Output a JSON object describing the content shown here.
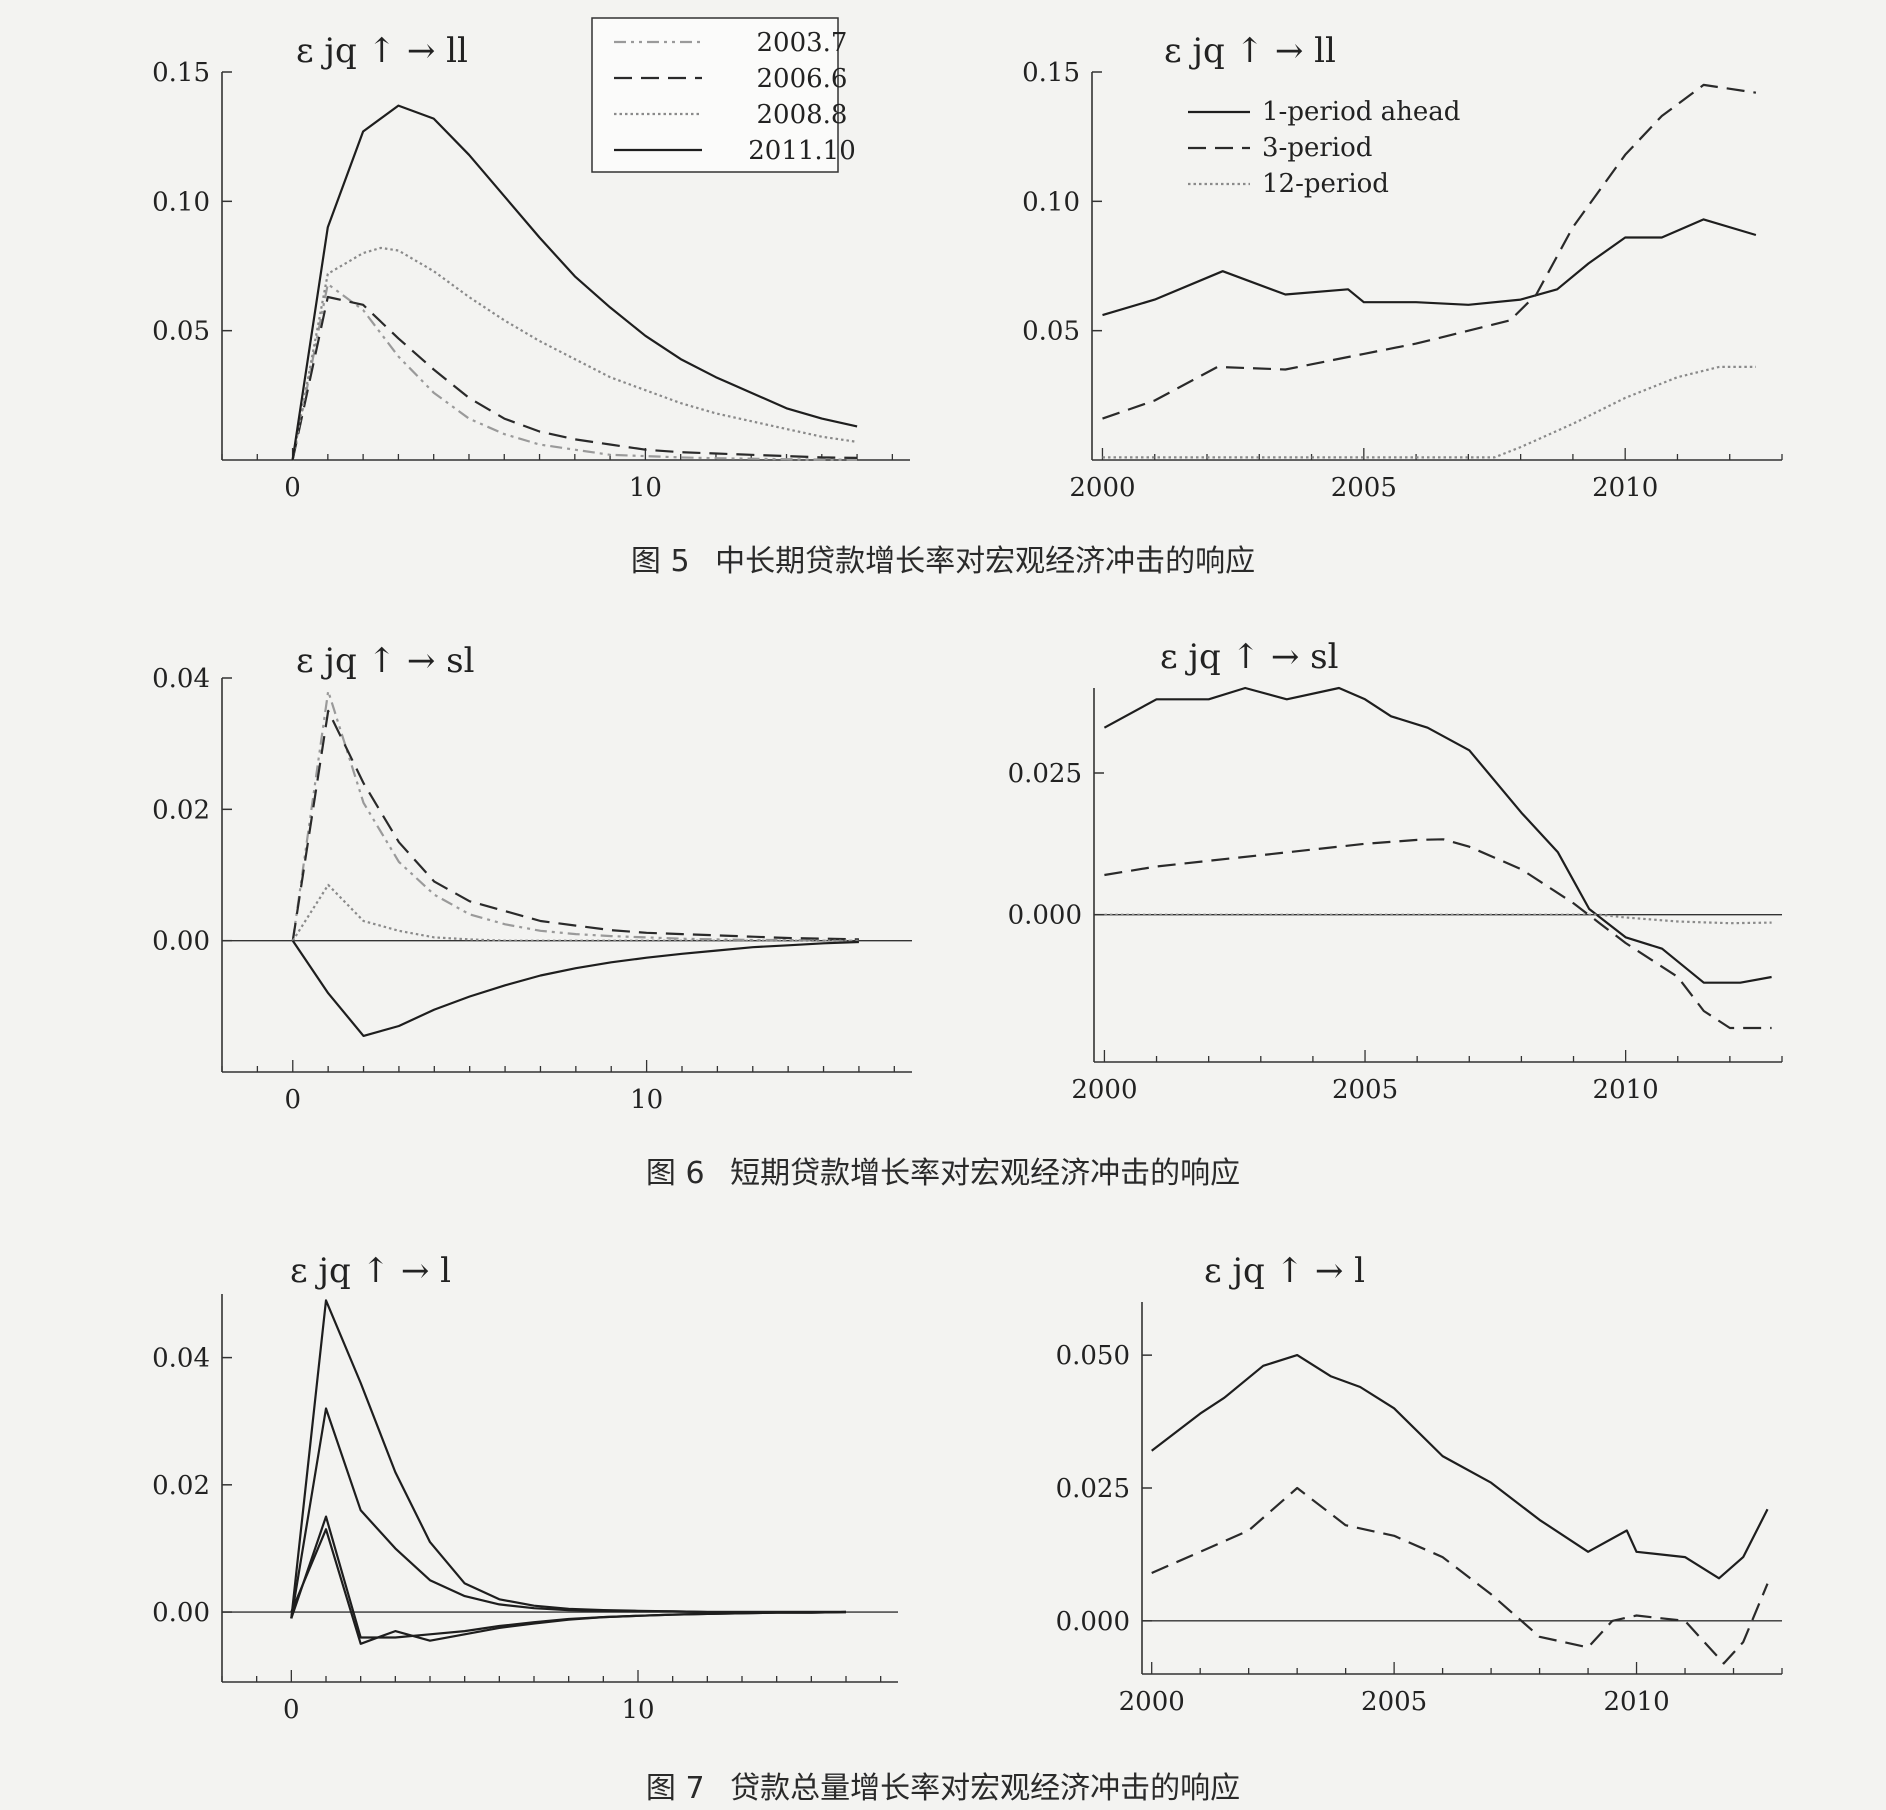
{
  "figures": [
    {
      "num": "图 5",
      "title": "中长期贷款增长率对宏观经济冲击的响应"
    },
    {
      "num": "图 6",
      "title": "短期贷款增长率对宏观经济冲击的响应"
    },
    {
      "num": "图 7",
      "title": "贷款总量增长率对宏观经济冲击的响应"
    }
  ],
  "chart_data": [
    {
      "type": "line",
      "panel": "5a",
      "title": "ε jq ↑ → ll",
      "xlim": [
        -2,
        17.5
      ],
      "ylim": [
        0,
        0.15
      ],
      "xticks": [
        0,
        10
      ],
      "yticks": [
        0.05,
        0.1,
        0.15
      ],
      "ytick_labels": [
        "0.05",
        "0.10",
        "0.15"
      ],
      "legend": "top-center",
      "series": [
        {
          "name": "2003.7",
          "style": "dashdotdot",
          "x": [
            0,
            1,
            2,
            3,
            4,
            5,
            6,
            7,
            8,
            9,
            10,
            11,
            12,
            13,
            14,
            15,
            16
          ],
          "y": [
            0,
            0.068,
            0.058,
            0.04,
            0.026,
            0.016,
            0.01,
            0.006,
            0.004,
            0.002,
            0.0015,
            0.001,
            0.0007,
            0.0005,
            0.0003,
            0.0002,
            0.0001
          ]
        },
        {
          "name": "2006.6",
          "style": "dashed",
          "x": [
            0,
            1,
            2,
            3,
            4,
            5,
            6,
            7,
            8,
            9,
            10,
            11,
            12,
            13,
            14,
            15,
            16
          ],
          "y": [
            0,
            0.063,
            0.06,
            0.047,
            0.035,
            0.024,
            0.016,
            0.011,
            0.008,
            0.006,
            0.004,
            0.003,
            0.0025,
            0.002,
            0.0015,
            0.001,
            0.0008
          ]
        },
        {
          "name": "2008.8",
          "style": "dotted",
          "x": [
            0,
            1,
            2,
            2.5,
            3,
            4,
            5,
            6,
            7,
            8,
            9,
            10,
            11,
            12,
            13,
            14,
            15,
            16
          ],
          "y": [
            0,
            0.072,
            0.08,
            0.082,
            0.081,
            0.073,
            0.063,
            0.054,
            0.046,
            0.039,
            0.032,
            0.027,
            0.022,
            0.018,
            0.015,
            0.012,
            0.009,
            0.007
          ]
        },
        {
          "name": "2011.10",
          "style": "solid",
          "x": [
            0,
            1,
            2,
            3,
            4,
            5,
            6,
            7,
            8,
            9,
            10,
            11,
            12,
            13,
            14,
            15,
            16
          ],
          "y": [
            0,
            0.09,
            0.127,
            0.137,
            0.132,
            0.118,
            0.102,
            0.086,
            0.071,
            0.059,
            0.048,
            0.039,
            0.032,
            0.026,
            0.02,
            0.016,
            0.013
          ]
        }
      ]
    },
    {
      "type": "line",
      "panel": "5b",
      "title": "ε jq ↑ → ll",
      "xlim": [
        1999.8,
        2013.0
      ],
      "ylim": [
        0,
        0.15
      ],
      "xticks": [
        2000,
        2005,
        2010
      ],
      "yticks": [
        0.05,
        0.1,
        0.15
      ],
      "ytick_labels": [
        "0.05",
        "0.10",
        "0.15"
      ],
      "legend": "top-left",
      "series": [
        {
          "name": "1-period ahead",
          "style": "solid",
          "x": [
            2000,
            2001,
            2002.3,
            2003.5,
            2004.7,
            2005,
            2006,
            2007,
            2008,
            2008.7,
            2009.3,
            2010,
            2010.7,
            2011.5,
            2012.5
          ],
          "y": [
            0.056,
            0.062,
            0.073,
            0.064,
            0.066,
            0.061,
            0.061,
            0.06,
            0.062,
            0.066,
            0.076,
            0.086,
            0.086,
            0.093,
            0.087
          ]
        },
        {
          "name": "3-period",
          "style": "dashed",
          "x": [
            2000,
            2001,
            2002.2,
            2003.5,
            2004,
            2005,
            2006,
            2007,
            2007.8,
            2008.3,
            2009,
            2010,
            2010.7,
            2011.5,
            2012.5
          ],
          "y": [
            0.016,
            0.023,
            0.036,
            0.035,
            0.037,
            0.041,
            0.045,
            0.05,
            0.054,
            0.064,
            0.09,
            0.118,
            0.133,
            0.145,
            0.142
          ]
        },
        {
          "name": "12-period",
          "style": "dotted",
          "x": [
            2000,
            2003,
            2007.5,
            2008,
            2009,
            2010,
            2011,
            2011.8,
            2012.5
          ],
          "y": [
            0.001,
            0.001,
            0.001,
            0.005,
            0.014,
            0.024,
            0.032,
            0.036,
            0.036
          ]
        }
      ]
    },
    {
      "type": "line",
      "panel": "6a",
      "title": "ε jq ↑ → sl",
      "xlim": [
        -2,
        17.5
      ],
      "ylim": [
        -0.02,
        0.04
      ],
      "xticks": [
        0,
        10
      ],
      "yticks": [
        0.0,
        0.02,
        0.04
      ],
      "ytick_labels": [
        "0.00",
        "0.02",
        "0.04"
      ],
      "zero_line": true,
      "series": [
        {
          "name": "2003.7",
          "style": "dashdotdot",
          "x": [
            0,
            1,
            2,
            3,
            4,
            5,
            6,
            7,
            8,
            9,
            10,
            11,
            12,
            13,
            14,
            15,
            16
          ],
          "y": [
            0,
            0.038,
            0.021,
            0.012,
            0.007,
            0.004,
            0.0025,
            0.0015,
            0.001,
            0.0007,
            0.0005,
            0.0003,
            0.0002,
            0.0001,
            0.0001,
            0,
            0
          ]
        },
        {
          "name": "2006.6",
          "style": "dashed",
          "x": [
            0,
            1,
            2,
            3,
            4,
            5,
            6,
            7,
            8,
            9,
            10,
            11,
            12,
            13,
            14,
            15,
            16
          ],
          "y": [
            0,
            0.035,
            0.024,
            0.015,
            0.009,
            0.006,
            0.0045,
            0.003,
            0.0023,
            0.0016,
            0.0012,
            0.001,
            0.0008,
            0.0006,
            0.0004,
            0.0003,
            0.0002
          ]
        },
        {
          "name": "2008.8",
          "style": "dotted",
          "x": [
            0,
            1,
            2,
            3,
            4,
            5,
            6,
            7,
            8,
            9,
            10,
            11,
            12,
            13,
            14,
            15,
            16
          ],
          "y": [
            0,
            0.0085,
            0.003,
            0.0015,
            0.0005,
            0.0002,
            0,
            0,
            0,
            0,
            0,
            0,
            0,
            0,
            0,
            0,
            0
          ]
        },
        {
          "name": "2011.10",
          "style": "solid",
          "x": [
            0,
            1,
            2,
            3,
            4,
            5,
            6,
            7,
            8,
            9,
            10,
            11,
            12,
            13,
            14,
            15,
            16
          ],
          "y": [
            0,
            -0.008,
            -0.0145,
            -0.013,
            -0.0105,
            -0.0085,
            -0.0068,
            -0.0053,
            -0.0042,
            -0.0033,
            -0.0026,
            -0.002,
            -0.0015,
            -0.001,
            -0.0007,
            -0.0004,
            -0.0002
          ]
        }
      ]
    },
    {
      "type": "line",
      "panel": "6b",
      "title": "ε jq ↑ → sl",
      "xlim": [
        1999.8,
        2013.0
      ],
      "ylim": [
        -0.026,
        0.04
      ],
      "xticks": [
        2000,
        2005,
        2010
      ],
      "yticks": [
        0.0,
        0.025
      ],
      "ytick_labels": [
        "0.000",
        "0.025"
      ],
      "zero_line": true,
      "series": [
        {
          "name": "1-period ahead",
          "style": "solid",
          "x": [
            2000,
            2001,
            2002,
            2002.7,
            2003.5,
            2004.5,
            2005,
            2005.5,
            2006.2,
            2007,
            2008,
            2008.7,
            2009.3,
            2010,
            2010.7,
            2011.5,
            2012.2,
            2012.8
          ],
          "y": [
            0.033,
            0.038,
            0.038,
            0.04,
            0.038,
            0.04,
            0.038,
            0.035,
            0.033,
            0.029,
            0.018,
            0.011,
            0.001,
            -0.004,
            -0.006,
            -0.012,
            -0.012,
            -0.011
          ]
        },
        {
          "name": "3-period",
          "style": "dashed",
          "x": [
            2000,
            2001,
            2002,
            2003,
            2004,
            2005,
            2006,
            2006.5,
            2007,
            2008,
            2009,
            2009.5,
            2010,
            2011,
            2011.5,
            2012,
            2012.8
          ],
          "y": [
            0.007,
            0.0085,
            0.0095,
            0.0105,
            0.0115,
            0.0125,
            0.0132,
            0.0133,
            0.012,
            0.008,
            0.002,
            -0.0015,
            -0.005,
            -0.011,
            -0.017,
            -0.02,
            -0.02
          ]
        },
        {
          "name": "12-period",
          "style": "dotted",
          "x": [
            2000,
            2008.5,
            2009,
            2009.5,
            2010,
            2011,
            2012,
            2012.8
          ],
          "y": [
            0,
            0,
            0,
            0,
            -0.0005,
            -0.0012,
            -0.0015,
            -0.0014
          ]
        }
      ]
    },
    {
      "type": "line",
      "panel": "7a",
      "title": "ε jq ↑ → l",
      "xlim": [
        -2,
        17.5
      ],
      "ylim": [
        -0.011,
        0.05
      ],
      "xticks": [
        0,
        10
      ],
      "yticks": [
        0.0,
        0.02,
        0.04
      ],
      "ytick_labels": [
        "0.00",
        "0.02",
        "0.04"
      ],
      "zero_line": true,
      "series": [
        {
          "name": "2003.7",
          "style": "solid",
          "x": [
            0,
            1,
            2,
            3,
            4,
            5,
            6,
            7,
            8,
            9,
            10,
            11,
            12,
            13,
            14,
            15,
            16
          ],
          "y": [
            0,
            0.013,
            -0.005,
            -0.003,
            -0.0045,
            -0.0035,
            -0.0025,
            -0.0018,
            -0.0012,
            -0.0008,
            -0.0006,
            -0.0004,
            -0.0003,
            -0.0002,
            -0.0001,
            -0.0001,
            0
          ]
        },
        {
          "name": "2006.6",
          "style": "solid",
          "x": [
            0,
            1,
            2,
            3,
            4,
            5,
            6,
            7,
            8,
            9,
            10,
            11,
            12,
            13,
            14,
            15,
            16
          ],
          "y": [
            -0.001,
            0.015,
            -0.004,
            -0.004,
            -0.0035,
            -0.003,
            -0.0022,
            -0.0016,
            -0.0011,
            -0.0008,
            -0.0006,
            -0.0004,
            -0.0003,
            -0.0002,
            -0.0001,
            -0.0001,
            0
          ]
        },
        {
          "name": "2008.8",
          "style": "solid",
          "x": [
            0,
            1,
            2,
            3,
            4,
            5,
            6,
            7,
            8,
            9,
            10,
            11,
            12,
            13,
            14,
            15,
            16
          ],
          "y": [
            -0.001,
            0.032,
            0.016,
            0.01,
            0.005,
            0.0025,
            0.0012,
            0.0006,
            0.0003,
            0.0002,
            0.0001,
            0.0001,
            0,
            0,
            0,
            0,
            0
          ]
        },
        {
          "name": "2011.10",
          "style": "solid",
          "x": [
            0,
            1,
            2,
            3,
            4,
            5,
            6,
            7,
            8,
            9,
            10,
            11,
            12,
            13,
            14,
            15,
            16
          ],
          "y": [
            -0.001,
            0.049,
            0.036,
            0.022,
            0.011,
            0.0045,
            0.002,
            0.001,
            0.0005,
            0.0003,
            0.0002,
            0.0001,
            0,
            0,
            0,
            0,
            0
          ]
        }
      ]
    },
    {
      "type": "line",
      "panel": "7b",
      "title": "ε jq ↑ → l",
      "xlim": [
        1999.8,
        2013.0
      ],
      "ylim": [
        -0.01,
        0.06
      ],
      "xticks": [
        2000,
        2005,
        2010
      ],
      "yticks": [
        0.0,
        0.025,
        0.05
      ],
      "ytick_labels": [
        "0.000",
        "0.025",
        "0.050"
      ],
      "zero_line": true,
      "series": [
        {
          "name": "1-period ahead",
          "style": "solid",
          "x": [
            2000,
            2001,
            2001.5,
            2002.3,
            2003,
            2003.7,
            2004.3,
            2005,
            2006,
            2007,
            2008,
            2009,
            2009.8,
            2010,
            2011,
            2011.7,
            2012.2,
            2012.7
          ],
          "y": [
            0.032,
            0.039,
            0.042,
            0.048,
            0.05,
            0.046,
            0.044,
            0.04,
            0.031,
            0.026,
            0.019,
            0.013,
            0.017,
            0.013,
            0.012,
            0.008,
            0.012,
            0.021
          ]
        },
        {
          "name": "3-period",
          "style": "dashed",
          "x": [
            2000,
            2001,
            2002,
            2003,
            2004,
            2005,
            2006,
            2007,
            2008,
            2009,
            2009.5,
            2010,
            2011,
            2011.8,
            2012.2,
            2012.7
          ],
          "y": [
            0.009,
            0.013,
            0.017,
            0.025,
            0.018,
            0.016,
            0.012,
            0.005,
            -0.003,
            -0.005,
            0,
            0.001,
            0,
            -0.008,
            -0.004,
            0.007
          ]
        }
      ]
    }
  ]
}
